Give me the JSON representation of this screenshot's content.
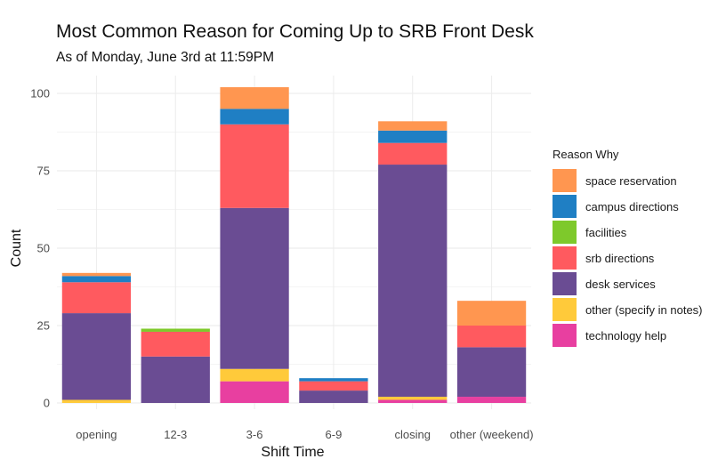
{
  "chart_data": {
    "type": "bar",
    "stacked": true,
    "title": "Most Common Reason for Coming Up to SRB Front Desk",
    "subtitle": "As of Monday, June 3rd at 11:59PM",
    "xlabel": "Shift Time",
    "ylabel": "Count",
    "ylim": [
      0,
      105
    ],
    "yticks": [
      0,
      25,
      50,
      75,
      100
    ],
    "grid": true,
    "legend_position": "right",
    "legend_title": "Reason Why",
    "categories": [
      "opening",
      "12-3",
      "3-6",
      "6-9",
      "closing",
      "other (weekend)"
    ],
    "series": [
      {
        "name": "space reservation",
        "color": "#ff9650",
        "values": [
          1,
          0,
          7,
          0,
          3,
          8
        ]
      },
      {
        "name": "campus directions",
        "color": "#1f7fc4",
        "values": [
          2,
          0,
          5,
          1,
          4,
          0
        ]
      },
      {
        "name": "facilities",
        "color": "#7ec92b",
        "values": [
          0,
          1,
          0,
          0,
          0,
          0
        ]
      },
      {
        "name": "srb directions",
        "color": "#ff5a5f",
        "values": [
          10,
          8,
          27,
          3,
          7,
          7
        ]
      },
      {
        "name": "desk services",
        "color": "#6a4c93",
        "values": [
          28,
          15,
          52,
          4,
          75,
          16
        ]
      },
      {
        "name": "other (specify in notes)",
        "color": "#ffca3a",
        "values": [
          1,
          0,
          4,
          0,
          1,
          0
        ]
      },
      {
        "name": "technology help",
        "color": "#e83fa0",
        "values": [
          0,
          0,
          7,
          0,
          1,
          2
        ]
      }
    ]
  }
}
